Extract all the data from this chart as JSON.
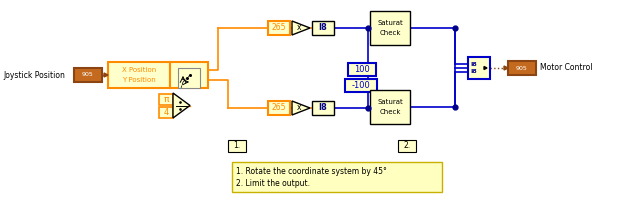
{
  "bg_color": "#ffffff",
  "orange": "#FF8C00",
  "blue": "#0000CD",
  "dark_blue": "#00008B",
  "brown": "#8B4513",
  "brown_fill": "#C46A1F",
  "block_fill": "#FFFFCC",
  "legend_text_line1": "1. Rotate the coordinate system by 45°",
  "legend_text_line2": "2. Limit the output.",
  "label1": "1.",
  "label2": "2.",
  "joystick_label": "Joystick Position",
  "motor_label": "Motor Control",
  "x_pos_label": "X Position",
  "y_pos_label": "Y Position",
  "val_265": "265",
  "val_100": "100",
  "val_n100": "-100",
  "val_I8": "I8",
  "val_pi": "π",
  "val_4": "4",
  "val_905": "905",
  "saturat_line1": "Saturat",
  "saturat_line2": "Check"
}
